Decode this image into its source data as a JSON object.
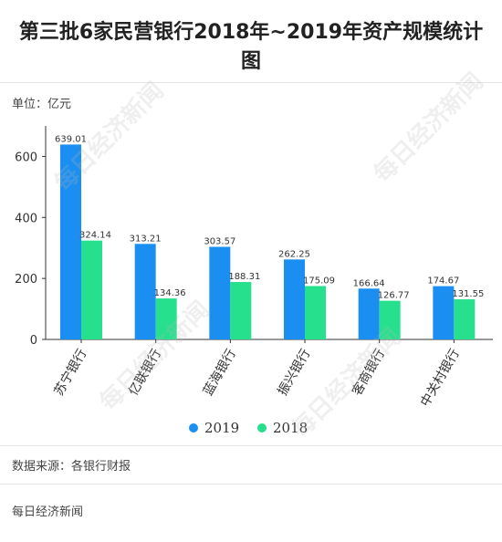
{
  "header": {
    "title": "第三批6家民营银行2018年~2019年资产规模统计图",
    "unit": "单位：亿元"
  },
  "footer": {
    "source": "数据来源：各银行财报",
    "brand": "每日经济新闻"
  },
  "watermark_text": "每日经济新闻",
  "chart_data": {
    "type": "bar",
    "categories": [
      "苏宁银行",
      "亿联银行",
      "蓝海银行",
      "振兴银行",
      "客商银行",
      "中关村银行"
    ],
    "series": [
      {
        "name": "2019",
        "values": [
          639.01,
          313.21,
          303.57,
          262.25,
          166.64,
          174.67
        ],
        "labels": [
          "639.01",
          "313.21",
          "303.57",
          "262.25",
          "166.64",
          "174.67"
        ],
        "color": "#1b8ff1"
      },
      {
        "name": "2018",
        "values": [
          324.14,
          134.36,
          188.31,
          175.09,
          126.77,
          131.55
        ],
        "labels": [
          "324.14",
          "134.36",
          "188.31",
          "175.09",
          "126.77",
          "131.55"
        ],
        "color": "#27e08e"
      }
    ],
    "ylim": [
      0,
      700
    ],
    "yticks": [
      0,
      200,
      400,
      600
    ],
    "grid": false,
    "legend": "bottom-center",
    "xlabel": "",
    "ylabel": ""
  }
}
